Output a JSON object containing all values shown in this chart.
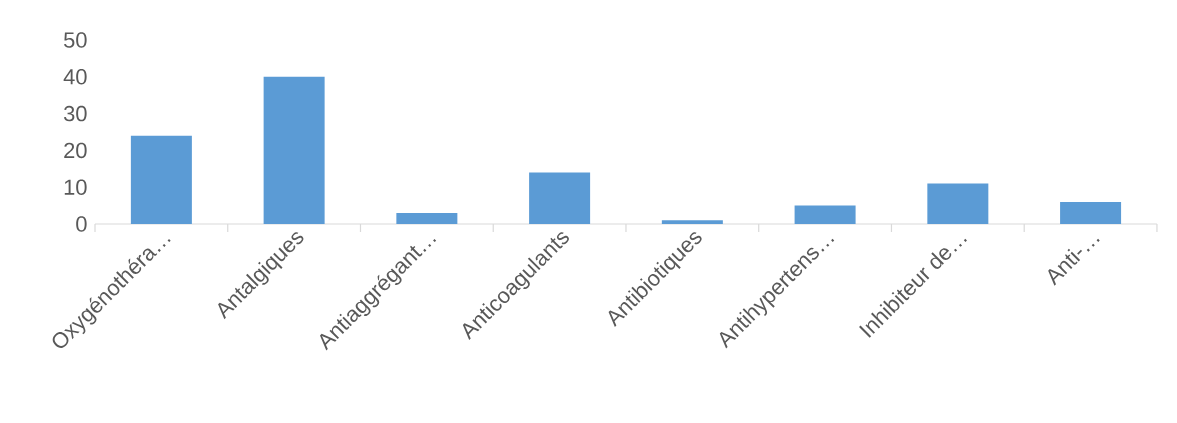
{
  "chart_data": {
    "type": "bar",
    "categories": [
      "Oxygénothéra…",
      "Antalgiques",
      "Antiaggrégant…",
      "Anticoagulants",
      "Antibiotiques",
      "Antihypertens…",
      "Inhibiteur de…",
      "Anti-…"
    ],
    "values": [
      24,
      40,
      3,
      14,
      1,
      5,
      11,
      6
    ],
    "color": "#5b9bd5",
    "ylim": [
      0,
      50
    ],
    "yticks": [
      0,
      10,
      20,
      30,
      40,
      50
    ],
    "grid": false
  }
}
